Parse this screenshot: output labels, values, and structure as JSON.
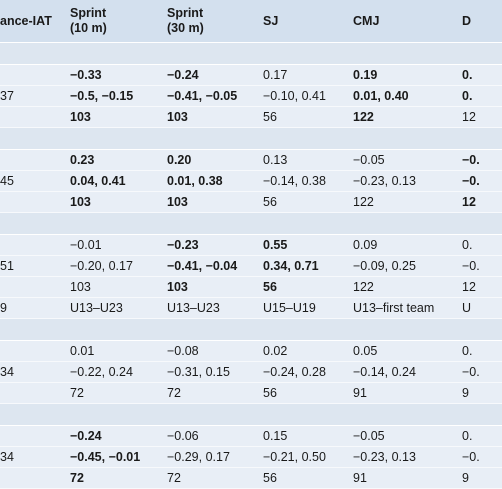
{
  "table": {
    "header": [
      {
        "text": "ance-IAT"
      },
      {
        "text": "Sprint\n(10 m)"
      },
      {
        "text": "Sprint\n(30 m)"
      },
      {
        "text": "SJ"
      },
      {
        "text": "CMJ"
      },
      {
        "text": "D"
      }
    ],
    "groups": [
      {
        "rows": [
          [
            null,
            {
              "text": "−0.33",
              "bold": true
            },
            {
              "text": "−0.24",
              "bold": true
            },
            {
              "text": "0.17"
            },
            {
              "text": "0.19",
              "bold": true
            },
            {
              "text": "0.",
              "bold": true
            }
          ],
          [
            {
              "text": "37"
            },
            {
              "text": "−0.5, −0.15",
              "bold": true
            },
            {
              "text": "−0.41, −0.05",
              "bold": true
            },
            {
              "text": "−0.10, 0.41"
            },
            {
              "text": "0.01, 0.40",
              "bold": true
            },
            {
              "text": "0.",
              "bold": true
            }
          ],
          [
            null,
            {
              "text": "103",
              "bold": true
            },
            {
              "text": "103",
              "bold": true
            },
            {
              "text": "56"
            },
            {
              "text": "122",
              "bold": true
            },
            {
              "text": "12"
            }
          ]
        ]
      },
      {
        "rows": [
          [
            null,
            {
              "text": "0.23",
              "bold": true
            },
            {
              "text": "0.20",
              "bold": true
            },
            {
              "text": "0.13"
            },
            {
              "text": "−0.05"
            },
            {
              "text": "−0.",
              "bold": true
            }
          ],
          [
            {
              "text": "45"
            },
            {
              "text": "0.04, 0.41",
              "bold": true
            },
            {
              "text": "0.01, 0.38",
              "bold": true
            },
            {
              "text": "−0.14, 0.38"
            },
            {
              "text": "−0.23, 0.13"
            },
            {
              "text": "−0.",
              "bold": true
            }
          ],
          [
            null,
            {
              "text": "103",
              "bold": true
            },
            {
              "text": "103",
              "bold": true
            },
            {
              "text": "56"
            },
            {
              "text": "122"
            },
            {
              "text": "12",
              "bold": true
            }
          ]
        ]
      },
      {
        "rows": [
          [
            null,
            {
              "text": "−0.01"
            },
            {
              "text": "−0.23",
              "bold": true
            },
            {
              "text": "0.55",
              "bold": true
            },
            {
              "text": "0.09"
            },
            {
              "text": "0."
            }
          ],
          [
            {
              "text": "51"
            },
            {
              "text": "−0.20, 0.17"
            },
            {
              "text": "−0.41, −0.04",
              "bold": true
            },
            {
              "text": "0.34, 0.71",
              "bold": true
            },
            {
              "text": "−0.09, 0.25"
            },
            {
              "text": "−0."
            }
          ],
          [
            null,
            {
              "text": "103"
            },
            {
              "text": "103",
              "bold": true
            },
            {
              "text": "56",
              "bold": true
            },
            {
              "text": "122"
            },
            {
              "text": "12"
            }
          ],
          [
            {
              "text": "9"
            },
            {
              "text": "U13–U23"
            },
            {
              "text": "U13–U23"
            },
            {
              "text": "U15–U19"
            },
            {
              "text": "U13–first team"
            },
            {
              "text": "U"
            }
          ]
        ]
      },
      {
        "rows": [
          [
            null,
            {
              "text": "0.01"
            },
            {
              "text": "−0.08"
            },
            {
              "text": "0.02"
            },
            {
              "text": "0.05"
            },
            {
              "text": "0."
            }
          ],
          [
            {
              "text": "34"
            },
            {
              "text": "−0.22, 0.24"
            },
            {
              "text": "−0.31, 0.15"
            },
            {
              "text": "−0.24, 0.28"
            },
            {
              "text": "−0.14, 0.24"
            },
            {
              "text": "−0."
            }
          ],
          [
            null,
            {
              "text": "72"
            },
            {
              "text": "72"
            },
            {
              "text": "56"
            },
            {
              "text": "91"
            },
            {
              "text": "9"
            }
          ]
        ]
      },
      {
        "rows": [
          [
            null,
            {
              "text": "−0.24",
              "bold": true
            },
            {
              "text": "−0.06"
            },
            {
              "text": "0.15"
            },
            {
              "text": "−0.05"
            },
            {
              "text": "0."
            }
          ],
          [
            {
              "text": "34"
            },
            {
              "text": "−0.45, −0.01",
              "bold": true
            },
            {
              "text": "−0.29, 0.17"
            },
            {
              "text": "−0.21, 0.50"
            },
            {
              "text": "−0.23, 0.13"
            },
            {
              "text": "−0."
            }
          ],
          [
            null,
            {
              "text": "72",
              "bold": true
            },
            {
              "text": "72"
            },
            {
              "text": "56"
            },
            {
              "text": "91"
            },
            {
              "text": "9"
            }
          ]
        ]
      }
    ]
  }
}
